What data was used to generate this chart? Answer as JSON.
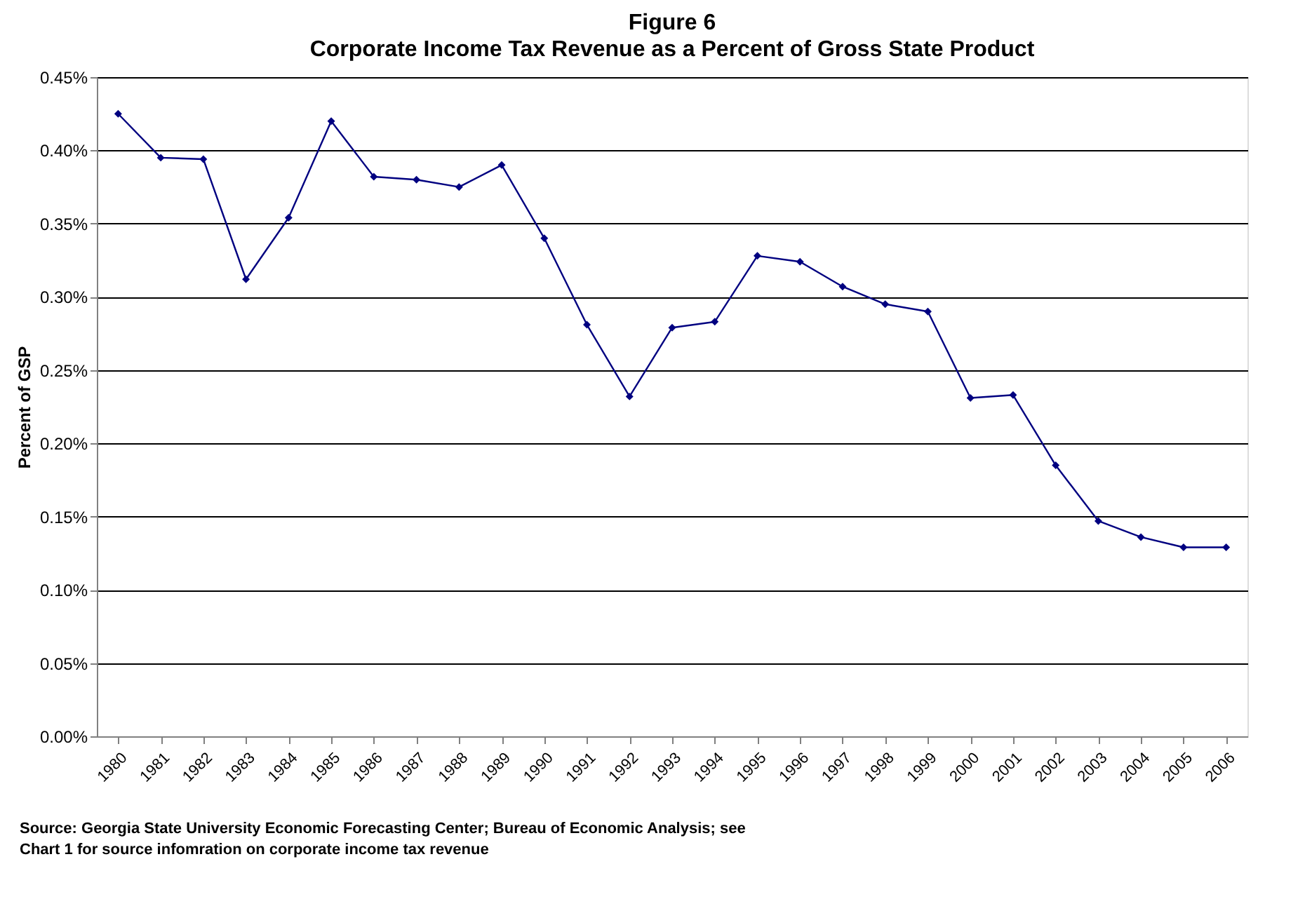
{
  "chart_data": {
    "type": "line",
    "title": "Figure 6",
    "subtitle": "Corporate Income Tax Revenue as a Percent of Gross State Product",
    "ylabel": "Percent of GSP",
    "categories": [
      "1980",
      "1981",
      "1982",
      "1983",
      "1984",
      "1985",
      "1986",
      "1987",
      "1988",
      "1989",
      "1990",
      "1991",
      "1992",
      "1993",
      "1994",
      "1995",
      "1996",
      "1997",
      "1998",
      "1999",
      "2000",
      "2001",
      "2002",
      "2003",
      "2004",
      "2005",
      "2006"
    ],
    "series": [
      {
        "color": "#000080",
        "values": [
          0.425,
          0.395,
          0.394,
          0.312,
          0.354,
          0.42,
          0.382,
          0.38,
          0.375,
          0.39,
          0.34,
          0.281,
          0.232,
          0.279,
          0.283,
          0.328,
          0.324,
          0.307,
          0.295,
          0.29,
          0.231,
          0.233,
          0.185,
          0.147,
          0.136,
          0.129,
          0.129
        ]
      }
    ],
    "ylim": [
      0,
      0.45
    ],
    "yticks": [
      {
        "value": 0,
        "label": "0.00%"
      },
      {
        "value": 0.05,
        "label": "0.05%"
      },
      {
        "value": 0.1,
        "label": "0.10%"
      },
      {
        "value": 0.15,
        "label": "0.15%"
      },
      {
        "value": 0.2,
        "label": "0.20%"
      },
      {
        "value": 0.25,
        "label": "0.25%"
      },
      {
        "value": 0.3,
        "label": "0.30%"
      },
      {
        "value": 0.35,
        "label": "0.35%"
      },
      {
        "value": 0.4,
        "label": "0.40%"
      },
      {
        "value": 0.45,
        "label": "0.45%"
      }
    ],
    "grid": "y",
    "marker": "diamond",
    "line_style": "solid",
    "annotations": [
      "Source: Georgia State University Economic Forecasting Center; Bureau of Economic Analysis; see",
      "Chart 1 for source infomration on corporate income tax revenue"
    ]
  }
}
